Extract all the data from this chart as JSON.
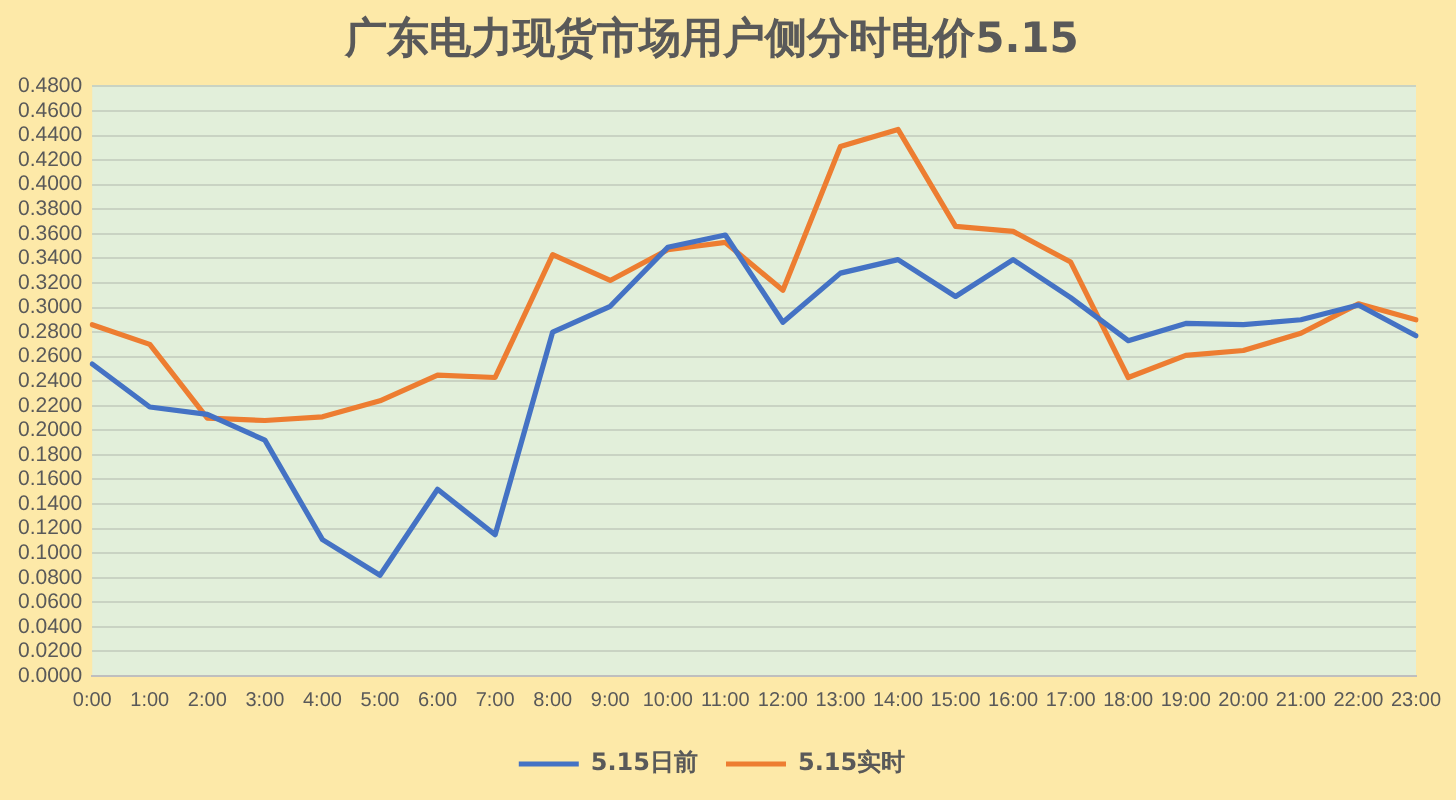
{
  "chart_data": {
    "type": "line",
    "title": "广东电力现货市场用户侧分时电价5.15",
    "categories": [
      "0:00",
      "1:00",
      "2:00",
      "3:00",
      "4:00",
      "5:00",
      "6:00",
      "7:00",
      "8:00",
      "9:00",
      "10:00",
      "11:00",
      "12:00",
      "13:00",
      "14:00",
      "15:00",
      "16:00",
      "17:00",
      "18:00",
      "19:00",
      "20:00",
      "21:00",
      "22:00",
      "23:00"
    ],
    "series": [
      {
        "name": "5.15日前",
        "color": "#4472c4",
        "values": [
          0.254,
          0.219,
          0.213,
          0.192,
          0.111,
          0.082,
          0.152,
          0.115,
          0.28,
          0.301,
          0.349,
          0.359,
          0.288,
          0.328,
          0.339,
          0.309,
          0.339,
          0.308,
          0.273,
          0.287,
          0.286,
          0.29,
          0.302,
          0.277
        ]
      },
      {
        "name": "5.15实时",
        "color": "#ed7d31",
        "values": [
          0.286,
          0.27,
          0.21,
          0.208,
          0.211,
          0.224,
          0.245,
          0.243,
          0.343,
          0.322,
          0.347,
          0.353,
          0.314,
          0.431,
          0.445,
          0.366,
          0.362,
          0.337,
          0.243,
          0.261,
          0.265,
          0.279,
          0.303,
          0.29
        ]
      }
    ],
    "ylim": [
      0,
      0.48
    ],
    "yticks": [
      {
        "value": 0,
        "label": "0.0000"
      },
      {
        "value": 0.02,
        "label": "0.0200"
      },
      {
        "value": 0.04,
        "label": "0.0400"
      },
      {
        "value": 0.06,
        "label": "0.0600"
      },
      {
        "value": 0.08,
        "label": "0.0800"
      },
      {
        "value": 0.1,
        "label": "0.1000"
      },
      {
        "value": 0.12,
        "label": "0.1200"
      },
      {
        "value": 0.14,
        "label": "0.1400"
      },
      {
        "value": 0.16,
        "label": "0.1600"
      },
      {
        "value": 0.18,
        "label": "0.1800"
      },
      {
        "value": 0.2,
        "label": "0.2000"
      },
      {
        "value": 0.22,
        "label": "0.2200"
      },
      {
        "value": 0.24,
        "label": "0.2400"
      },
      {
        "value": 0.26,
        "label": "0.2600"
      },
      {
        "value": 0.28,
        "label": "0.2800"
      },
      {
        "value": 0.3,
        "label": "0.3000"
      },
      {
        "value": 0.32,
        "label": "0.3200"
      },
      {
        "value": 0.34,
        "label": "0.3400"
      },
      {
        "value": 0.36,
        "label": "0.3600"
      },
      {
        "value": 0.38,
        "label": "0.3800"
      },
      {
        "value": 0.4,
        "label": "0.4000"
      },
      {
        "value": 0.42,
        "label": "0.4200"
      },
      {
        "value": 0.44,
        "label": "0.4400"
      },
      {
        "value": 0.46,
        "label": "0.4600"
      },
      {
        "value": 0.48,
        "label": "0.4800"
      }
    ],
    "grid": "y",
    "legend": "bottom",
    "marker": "none",
    "line_style": "solid"
  }
}
